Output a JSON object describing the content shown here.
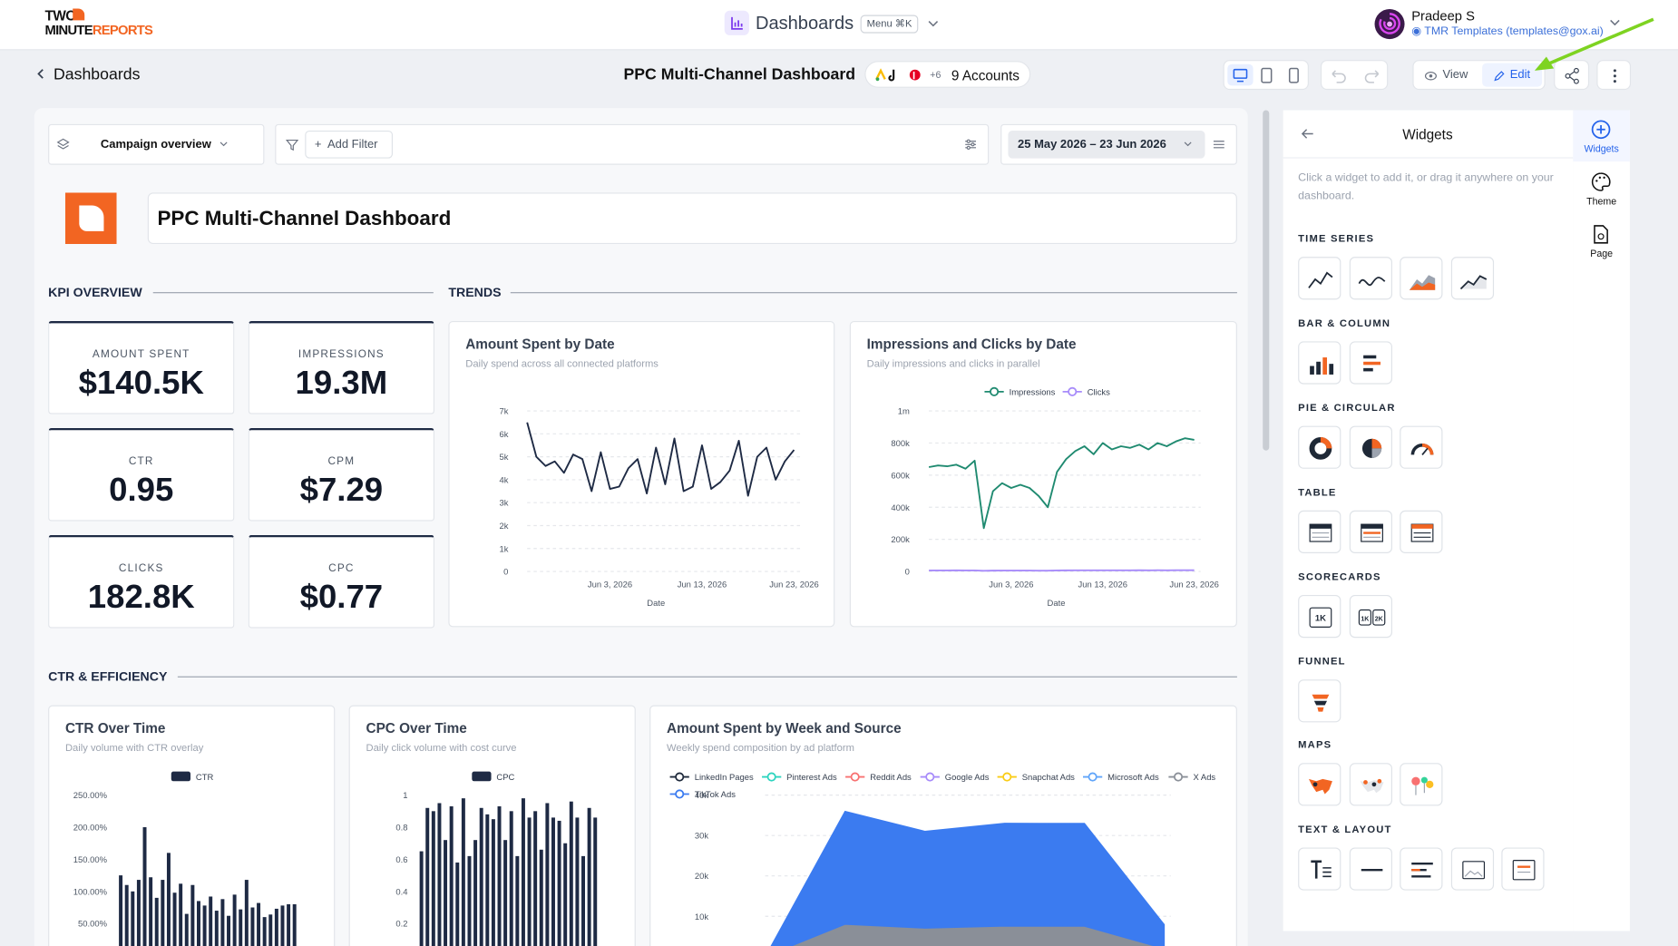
{
  "header": {
    "logo_top": "TWO",
    "logo_mid": "MINUTE",
    "logo_end": "REPORTS",
    "nav_title": "Dashboards",
    "menu": "Menu ⌘K",
    "user_name": "Pradeep S",
    "user_org": "TMR Templates (templates@gox.ai)"
  },
  "toolbar": {
    "back": "Dashboards",
    "title": "PPC Multi-Channel Dashboard",
    "accounts_extra": "+6",
    "accounts": "9 Accounts",
    "view": "View",
    "edit": "Edit"
  },
  "filters": {
    "view": "Campaign overview",
    "add_filter": "Add Filter",
    "date_range": "25 May 2026 – 23 Jun 2026"
  },
  "banner_title": "PPC Multi-Channel Dashboard",
  "sections": [
    "KPI OVERVIEW",
    "TRENDS",
    "CTR & EFFICIENCY"
  ],
  "kpis": [
    {
      "label": "AMOUNT SPENT",
      "value": "$140.5K"
    },
    {
      "label": "IMPRESSIONS",
      "value": "19.3M"
    },
    {
      "label": "CTR",
      "value": "0.95"
    },
    {
      "label": "CPM",
      "value": "$7.29"
    },
    {
      "label": "CLICKS",
      "value": "182.8K"
    },
    {
      "label": "CPC",
      "value": "$0.77"
    }
  ],
  "charts": [
    {
      "type": "line",
      "title": "Amount Spent by Date",
      "subtitle": "Daily spend across all connected platforms",
      "x_label": "Date",
      "color": "#1e2a44",
      "categories": [
        null,
        null,
        null,
        null,
        null,
        null,
        null,
        null,
        null,
        "Jun 3, 2026",
        null,
        null,
        null,
        null,
        null,
        null,
        null,
        null,
        null,
        "Jun 13, 2026",
        null,
        null,
        null,
        null,
        null,
        null,
        null,
        null,
        null,
        "Jun 23, 2026"
      ],
      "values": [
        6500,
        5000,
        4600,
        4800,
        4300,
        5100,
        4900,
        3500,
        5200,
        3600,
        3700,
        4500,
        4900,
        3400,
        5400,
        3800,
        5800,
        3500,
        3700,
        5500,
        3600,
        3900,
        4400,
        5700,
        3300,
        5000,
        5400,
        4000,
        4800,
        5300
      ],
      "ylim": [
        0,
        7000
      ],
      "yticks": [
        0,
        {
          "value": 1000,
          "label": "1k"
        },
        {
          "value": 2000,
          "label": "2k"
        },
        {
          "value": 3000,
          "label": "3k"
        },
        {
          "value": 4000,
          "label": "4k"
        },
        {
          "value": 5000,
          "label": "5k"
        },
        {
          "value": 6000,
          "label": "6k"
        },
        {
          "value": 7000,
          "label": "7k"
        }
      ],
      "grid": true
    },
    {
      "type": "line",
      "title": "Impressions and Clicks by Date",
      "subtitle": "Daily impressions and clicks in parallel",
      "x_label": "Date",
      "legend": "top",
      "categories": [
        null,
        null,
        null,
        null,
        null,
        null,
        null,
        null,
        null,
        "Jun 3, 2026",
        null,
        null,
        null,
        null,
        null,
        null,
        null,
        null,
        null,
        "Jun 13, 2026",
        null,
        null,
        null,
        null,
        null,
        null,
        null,
        null,
        null,
        "Jun 23, 2026"
      ],
      "series": [
        {
          "name": "Impressions",
          "color": "#1f8a70",
          "values": [
            650000,
            660000,
            655000,
            665000,
            640000,
            690000,
            270000,
            500000,
            550000,
            520000,
            540000,
            520000,
            470000,
            400000,
            620000,
            700000,
            750000,
            780000,
            730000,
            800000,
            760000,
            780000,
            770000,
            790000,
            760000,
            800000,
            780000,
            810000,
            830000,
            820000
          ]
        },
        {
          "name": "Clicks",
          "color": "#a78bfa",
          "values": [
            6000,
            6500,
            6200,
            6800,
            6100,
            6400,
            4000,
            5200,
            5600,
            5400,
            5800,
            5500,
            5000,
            4800,
            6200,
            6600,
            6900,
            7100,
            6800,
            7200,
            7000,
            7100,
            6900,
            7300,
            7000,
            7400,
            7200,
            7500,
            7600,
            7400
          ]
        }
      ],
      "ylim": [
        0,
        1000000
      ],
      "yticks": [
        0,
        {
          "value": 200000,
          "label": "200k"
        },
        {
          "value": 400000,
          "label": "400k"
        },
        {
          "value": 600000,
          "label": "600k"
        },
        {
          "value": 800000,
          "label": "800k"
        },
        {
          "value": 1000000,
          "label": "1m"
        }
      ],
      "grid": true
    },
    {
      "type": "bar",
      "title": "CTR Over Time",
      "subtitle": "Daily volume with CTR overlay",
      "legend": "top",
      "series": [
        {
          "name": "CTR",
          "color": "#1e2a44",
          "values": [
            125,
            110,
            100,
            118,
            200,
            122,
            90,
            118,
            160,
            98,
            112,
            65,
            110,
            85,
            78,
            92,
            70,
            88,
            62,
            95,
            72,
            118,
            75,
            82,
            60,
            64,
            73,
            78,
            80,
            80
          ]
        }
      ],
      "ylim": [
        0,
        250
      ],
      "yticks": [
        {
          "value": 50,
          "label": "50.00%"
        },
        {
          "value": 100,
          "label": "100.00%"
        },
        {
          "value": 150,
          "label": "150.00%"
        },
        {
          "value": 200,
          "label": "200.00%"
        },
        {
          "value": 250,
          "label": "250.00%"
        }
      ]
    },
    {
      "type": "bar",
      "title": "CPC Over Time",
      "subtitle": "Daily click volume with cost curve",
      "legend": "top",
      "series": [
        {
          "name": "CPC",
          "color": "#1e2a44",
          "values": [
            0.65,
            0.92,
            0.9,
            0.95,
            0.72,
            0.93,
            0.58,
            0.98,
            0.62,
            0.72,
            0.92,
            0.88,
            0.85,
            0.93,
            0.72,
            0.9,
            0.62,
            0.98,
            0.86,
            0.9,
            0.66,
            0.95,
            0.86,
            0.84,
            0.7,
            0.96,
            0.86,
            0.62,
            0.92,
            0.86
          ]
        }
      ],
      "ylim": [
        0,
        1
      ],
      "yticks": [
        0.2,
        0.4,
        0.6,
        0.8,
        1
      ]
    },
    {
      "type": "area",
      "stacked": true,
      "title": "Amount Spent by Week and Source",
      "subtitle": "Weekly spend composition by ad platform",
      "legend": "top",
      "series": [
        {
          "name": "LinkedIn Pages",
          "color": "#1e293b",
          "values": [
            0,
            300,
            250,
            280,
            260,
            80
          ]
        },
        {
          "name": "Pinterest Ads",
          "color": "#2dd4bf",
          "values": [
            0,
            200,
            180,
            190,
            200,
            60
          ]
        },
        {
          "name": "Reddit Ads",
          "color": "#f87171",
          "values": [
            0,
            150,
            140,
            150,
            150,
            40
          ]
        },
        {
          "name": "Google Ads",
          "color": "#a78bfa",
          "values": [
            0,
            250,
            230,
            240,
            240,
            70
          ]
        },
        {
          "name": "Snapchat Ads",
          "color": "#facc15",
          "values": [
            0,
            180,
            160,
            170,
            170,
            50
          ]
        },
        {
          "name": "Microsoft Ads",
          "color": "#60a5fa",
          "values": [
            0,
            220,
            200,
            210,
            200,
            60
          ]
        },
        {
          "name": "X Ads",
          "color": "#8a8f98",
          "values": [
            0,
            6700,
            5900,
            6300,
            6300,
            1600
          ]
        },
        {
          "name": "TikTok Ads",
          "color": "#3b7bf0",
          "values": [
            0,
            28000,
            24000,
            25500,
            25500,
            6000
          ]
        }
      ],
      "ylim": [
        0,
        40000
      ],
      "yticks": [
        {
          "value": 10000,
          "label": "10k"
        },
        {
          "value": 20000,
          "label": "20k"
        },
        {
          "value": 30000,
          "label": "30k"
        },
        {
          "value": 40000,
          "label": "40k"
        }
      ],
      "grid": true
    }
  ],
  "sidebar": {
    "title": "Widgets",
    "hint": "Click a widget to add it, or drag it anywhere on your dashboard.",
    "groups": [
      "TIME SERIES",
      "BAR & COLUMN",
      "PIE & CIRCULAR",
      "TABLE",
      "SCORECARDS",
      "FUNNEL",
      "MAPS",
      "TEXT & LAYOUT"
    ],
    "scorecards": [
      "1K",
      "1K",
      "2K"
    ],
    "rail": [
      "Widgets",
      "Theme",
      "Page"
    ]
  }
}
